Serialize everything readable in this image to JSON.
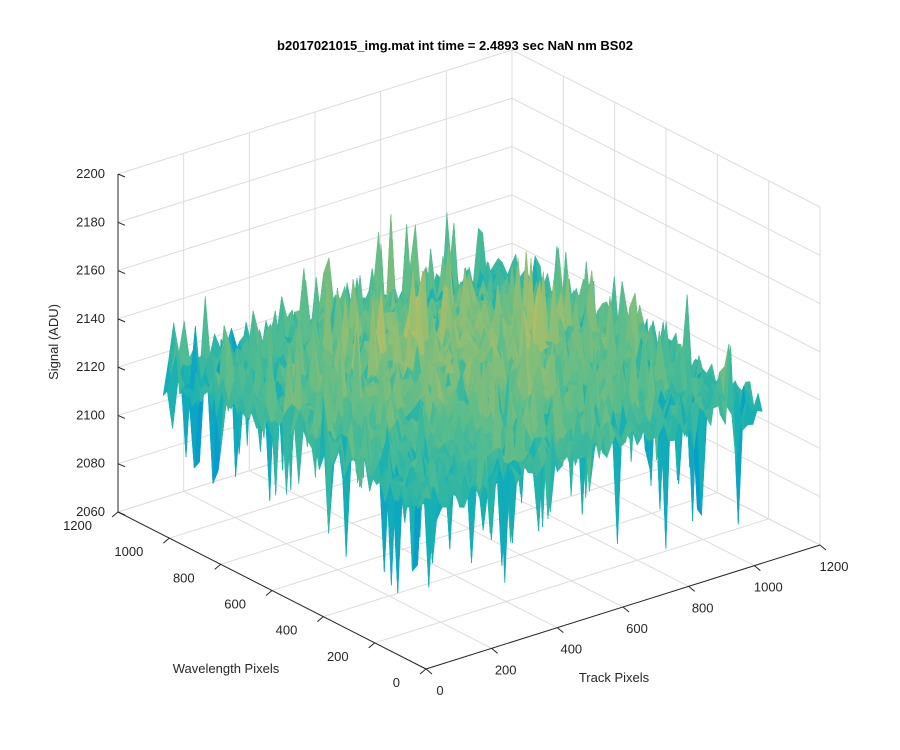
{
  "chart_data": {
    "type": "surface",
    "title": "b2017021015_img.mat int time = 2.4893 sec  NaN nm BS02",
    "xlabel": "Track Pixels",
    "ylabel": "Wavelength Pixels",
    "zlabel": "Signal (ADU)",
    "xlim": [
      0,
      1200
    ],
    "ylim": [
      0,
      1200
    ],
    "zlim": [
      2060,
      2200
    ],
    "xticks": [
      "0",
      "200",
      "400",
      "600",
      "800",
      "1000",
      "1200"
    ],
    "yticks": [
      "0",
      "200",
      "400",
      "600",
      "800",
      "1000",
      "1200"
    ],
    "zticks": [
      "2060",
      "2080",
      "2100",
      "2120",
      "2140",
      "2160",
      "2180",
      "2200"
    ],
    "grid": true,
    "colormap": "parula",
    "surface_extent": {
      "x": [
        0,
        1024
      ],
      "y": [
        0,
        1024
      ]
    },
    "signal_mean": 2130,
    "signal_range_approx": [
      2063,
      2185
    ]
  }
}
